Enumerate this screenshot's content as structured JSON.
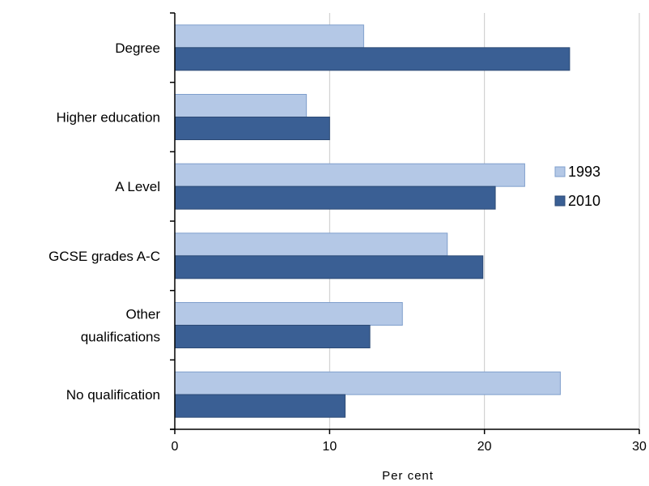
{
  "chart_data": {
    "type": "bar",
    "orientation": "horizontal",
    "categories": [
      "Degree",
      "Higher education",
      "A Level",
      "GCSE grades A-C",
      "Other\nqualifications",
      "No qualification"
    ],
    "series": [
      {
        "name": "1993",
        "values": [
          12.2,
          8.5,
          22.6,
          17.6,
          14.7,
          24.9
        ]
      },
      {
        "name": "2010",
        "values": [
          25.5,
          10.0,
          20.7,
          19.9,
          12.6,
          11.0
        ]
      }
    ],
    "xlabel": "Per cent",
    "ylabel": "",
    "xlim": [
      0,
      30
    ],
    "xticks": [
      0,
      10,
      20,
      30
    ],
    "grid": "vertical",
    "legend_position": "right",
    "colors": {
      "1993": "#b4c8e6",
      "2010": "#3a5f94",
      "1993_edge": "#7f9fcc",
      "2010_edge": "#2c4a75",
      "grid": "#c8c8c8",
      "axis": "#000000"
    }
  }
}
